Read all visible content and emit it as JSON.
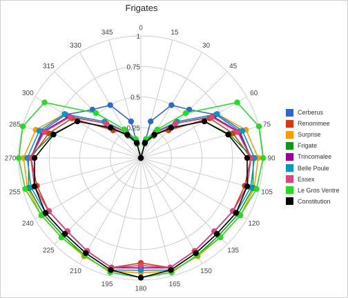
{
  "chart_data": {
    "type": "polar-line",
    "title": "Frigates",
    "angle_ticks": [
      "0",
      "15",
      "30",
      "45",
      "60",
      "75",
      "90",
      "105",
      "120",
      "135",
      "150",
      "165",
      "180",
      "195",
      "210",
      "225",
      "240",
      "255",
      "270",
      "285",
      "300",
      "315",
      "330",
      "345"
    ],
    "radial_ticks": [
      "0.25",
      "0.5",
      "0.75",
      "1"
    ],
    "rlim": [
      0,
      1
    ],
    "grid": true,
    "legend_position": "right",
    "angles": [
      0,
      15,
      30,
      45,
      60,
      75,
      90,
      105,
      120,
      135,
      150,
      165,
      180,
      195,
      210,
      225,
      240,
      255,
      270,
      285,
      300,
      315,
      330,
      345
    ],
    "series": [
      {
        "name": "Cerberus",
        "color": "#3366cc",
        "values": [
          0.0,
          0.31,
          0.5,
          0.56,
          0.71,
          0.84,
          0.9,
          0.9,
          0.87,
          0.85,
          0.88,
          0.93,
          0.9,
          0.93,
          0.88,
          0.85,
          0.87,
          0.9,
          0.9,
          0.84,
          0.71,
          0.56,
          0.5,
          0.31
        ]
      },
      {
        "name": "Renommee",
        "color": "#dc3912",
        "values": [
          0.0,
          0.13,
          0.23,
          0.32,
          0.65,
          0.78,
          0.9,
          0.88,
          0.87,
          0.85,
          0.88,
          0.93,
          0.86,
          0.93,
          0.88,
          0.85,
          0.87,
          0.88,
          0.9,
          0.78,
          0.65,
          0.32,
          0.23,
          0.13
        ]
      },
      {
        "name": "Surprise",
        "color": "#ff9900",
        "values": [
          0.0,
          0.13,
          0.24,
          0.42,
          0.72,
          0.89,
          0.96,
          0.96,
          0.94,
          0.92,
          0.93,
          0.96,
          0.94,
          0.96,
          0.93,
          0.92,
          0.94,
          0.96,
          0.96,
          0.89,
          0.72,
          0.42,
          0.24,
          0.13
        ]
      },
      {
        "name": "Frigate",
        "color": "#109618",
        "values": [
          0.0,
          0.12,
          0.21,
          0.35,
          0.6,
          0.75,
          0.92,
          0.95,
          0.92,
          0.9,
          0.92,
          0.97,
          0.98,
          0.97,
          0.92,
          0.9,
          0.92,
          0.95,
          0.92,
          0.75,
          0.6,
          0.35,
          0.21,
          0.12
        ]
      },
      {
        "name": "Trincomalee",
        "color": "#990099",
        "values": [
          0.0,
          0.13,
          0.24,
          0.4,
          0.68,
          0.83,
          0.9,
          0.9,
          0.87,
          0.85,
          0.88,
          0.93,
          0.9,
          0.93,
          0.88,
          0.85,
          0.87,
          0.9,
          0.9,
          0.83,
          0.68,
          0.4,
          0.24,
          0.13
        ]
      },
      {
        "name": "Belle Poule",
        "color": "#0099c6",
        "values": [
          0.0,
          0.14,
          0.25,
          0.42,
          0.72,
          0.86,
          0.93,
          0.93,
          0.9,
          0.88,
          0.9,
          0.95,
          0.92,
          0.95,
          0.9,
          0.88,
          0.9,
          0.93,
          0.93,
          0.86,
          0.72,
          0.42,
          0.25,
          0.14
        ]
      },
      {
        "name": "Essex",
        "color": "#dd4477",
        "values": [
          0.0,
          0.13,
          0.24,
          0.4,
          0.67,
          0.82,
          0.9,
          0.9,
          0.87,
          0.85,
          0.88,
          0.93,
          0.88,
          0.93,
          0.88,
          0.85,
          0.87,
          0.9,
          0.9,
          0.82,
          0.67,
          0.4,
          0.24,
          0.13
        ]
      },
      {
        "name": "Le Gros Ventre",
        "color": "#22dd22",
        "values": [
          0.0,
          0.16,
          0.27,
          0.52,
          0.91,
          1.0,
          1.0,
          0.98,
          0.94,
          0.92,
          0.92,
          0.97,
          0.98,
          0.97,
          0.92,
          0.92,
          0.94,
          0.98,
          1.0,
          1.0,
          0.91,
          0.52,
          0.27,
          0.16
        ]
      },
      {
        "name": "Constitution",
        "color": "#000000",
        "values": [
          0.0,
          0.13,
          0.22,
          0.35,
          0.6,
          0.74,
          0.87,
          0.9,
          0.9,
          0.88,
          0.9,
          0.95,
          0.98,
          0.95,
          0.9,
          0.88,
          0.9,
          0.9,
          0.87,
          0.74,
          0.6,
          0.35,
          0.22,
          0.13
        ]
      }
    ]
  }
}
